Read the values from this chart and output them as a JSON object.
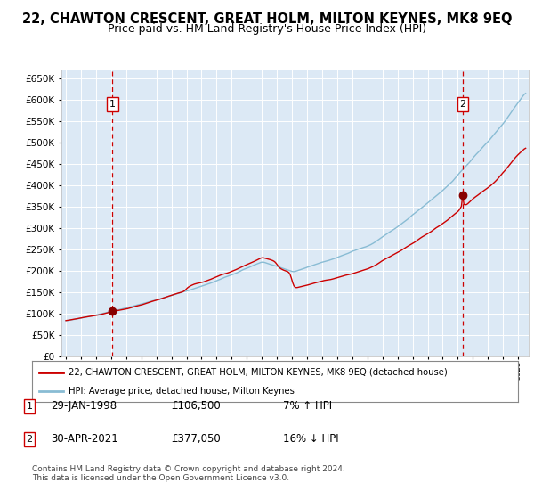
{
  "title": "22, CHAWTON CRESCENT, GREAT HOLM, MILTON KEYNES, MK8 9EQ",
  "subtitle": "Price paid vs. HM Land Registry's House Price Index (HPI)",
  "xmin": 1994.7,
  "xmax": 2025.7,
  "ymin": 0,
  "ymax": 670000,
  "yticks": [
    0,
    50000,
    100000,
    150000,
    200000,
    250000,
    300000,
    350000,
    400000,
    450000,
    500000,
    550000,
    600000,
    650000
  ],
  "background_color": "#dce9f5",
  "grid_color": "#ffffff",
  "sale1_date": 1998.08,
  "sale1_price": 106500,
  "sale2_date": 2021.33,
  "sale2_price": 377050,
  "sale1_label": "1",
  "sale2_label": "2",
  "legend_line1": "22, CHAWTON CRESCENT, GREAT HOLM, MILTON KEYNES, MK8 9EQ (detached house)",
  "legend_line2": "HPI: Average price, detached house, Milton Keynes",
  "annot1_num": "1",
  "annot1_date": "29-JAN-1998",
  "annot1_price": "£106,500",
  "annot1_hpi": "7% ↑ HPI",
  "annot2_num": "2",
  "annot2_date": "30-APR-2021",
  "annot2_price": "£377,050",
  "annot2_hpi": "16% ↓ HPI",
  "footer": "Contains HM Land Registry data © Crown copyright and database right 2024.\nThis data is licensed under the Open Government Licence v3.0.",
  "red_line_color": "#cc0000",
  "blue_line_color": "#89bcd4",
  "marker_color": "#880000",
  "vline_color": "#cc0000",
  "title_fontsize": 10.5,
  "subtitle_fontsize": 9
}
